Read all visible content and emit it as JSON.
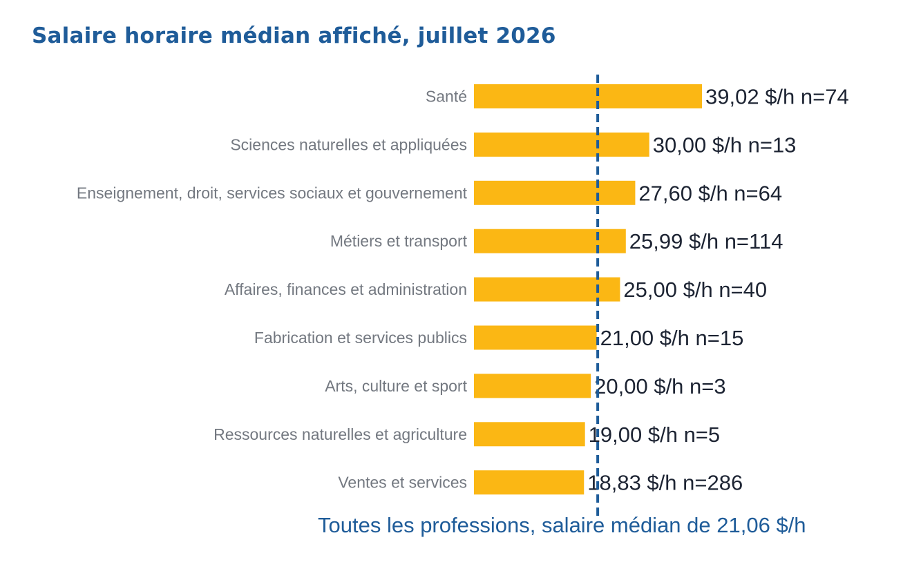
{
  "chart_data": {
    "type": "bar",
    "orientation": "horizontal",
    "title": "Salaire horaire médian affiché, juillet 2026",
    "categories": [
      "Santé",
      "Sciences naturelles et appliquées",
      "Enseignement, droit, services sociaux et gouvernement",
      "Métiers et transport",
      "Affaires, finances et administration",
      "Fabrication et services publics",
      "Arts, culture et sport",
      "Ressources naturelles et agriculture",
      "Ventes et services"
    ],
    "values": [
      39.02,
      30.0,
      27.6,
      25.99,
      25.0,
      21.0,
      20.0,
      19.0,
      18.83
    ],
    "data_labels": [
      "39,02 $/h  n=74",
      "30,00 $/h  n=13",
      "27,60 $/h  n=64",
      "25,99 $/h  n=114",
      "25,00 $/h  n=40",
      "21,00 $/h  n=15",
      "20,00 $/h  n=3",
      "19,00 $/h  n=5",
      "18,83 $/h  n=286"
    ],
    "reference_line": {
      "value": 21.06,
      "label": "Toutes les professions, salaire médian de 21,06 $/h"
    },
    "xlim": [
      0,
      39.02
    ],
    "grid": false,
    "legend": "none",
    "colors": {
      "bar": "#FBB714",
      "reference_line": "#1F5C99",
      "title": "#1F5C99",
      "category_label": "#737880",
      "value_label": "#1d2433",
      "reference_label": "#1F5C99"
    }
  }
}
